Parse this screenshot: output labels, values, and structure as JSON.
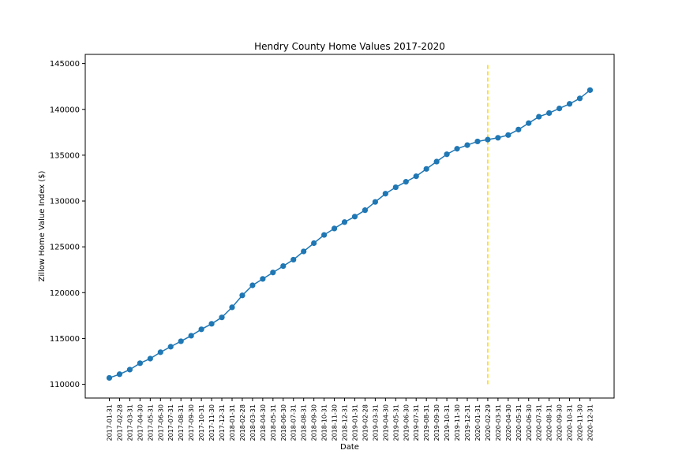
{
  "chart_data": {
    "type": "line",
    "title": "Hendry County Home Values 2017-2020",
    "xlabel": "Date",
    "ylabel": "Zillow Home Value Index ($)",
    "ylim": [
      108500,
      146000
    ],
    "yticks": [
      "110000",
      "115000",
      "120000",
      "125000",
      "130000",
      "135000",
      "140000",
      "145000"
    ],
    "grid": false,
    "legend": "none",
    "x": [
      "2017-01-31",
      "2017-02-28",
      "2017-03-31",
      "2017-04-30",
      "2017-05-31",
      "2017-06-30",
      "2017-07-31",
      "2017-08-31",
      "2017-09-30",
      "2017-10-31",
      "2017-11-30",
      "2017-12-31",
      "2018-01-31",
      "2018-02-28",
      "2018-03-31",
      "2018-04-30",
      "2018-05-31",
      "2018-06-30",
      "2018-07-31",
      "2018-08-31",
      "2018-09-30",
      "2018-10-31",
      "2018-11-30",
      "2018-12-31",
      "2019-01-31",
      "2019-02-28",
      "2019-03-31",
      "2019-04-30",
      "2019-05-31",
      "2019-06-30",
      "2019-07-31",
      "2019-08-31",
      "2019-09-30",
      "2019-10-31",
      "2019-11-30",
      "2019-12-31",
      "2020-01-31",
      "2020-02-29",
      "2020-03-31",
      "2020-04-30",
      "2020-05-31",
      "2020-06-30",
      "2020-07-31",
      "2020-08-31",
      "2020-09-30",
      "2020-10-31",
      "2020-11-30",
      "2020-12-31"
    ],
    "series": [
      {
        "color": "#1f77b4",
        "marker": "circle",
        "values": [
          110700,
          111100,
          111600,
          112300,
          112800,
          113500,
          114100,
          114700,
          115300,
          116000,
          116600,
          117300,
          118400,
          119700,
          120800,
          121500,
          122200,
          122900,
          123600,
          124500,
          125400,
          126300,
          127000,
          127700,
          128300,
          129000,
          129900,
          130800,
          131500,
          132100,
          132700,
          133500,
          134300,
          135100,
          135700,
          136100,
          136500,
          136700,
          136900,
          137200,
          137800,
          138500,
          139200,
          139600,
          140100,
          140600,
          141200,
          142100
        ]
      }
    ],
    "reference_line": {
      "x": "2020-02-29",
      "y_from": 110000,
      "y_to": 145000,
      "color": "#ffd700",
      "style": "dashed"
    }
  }
}
